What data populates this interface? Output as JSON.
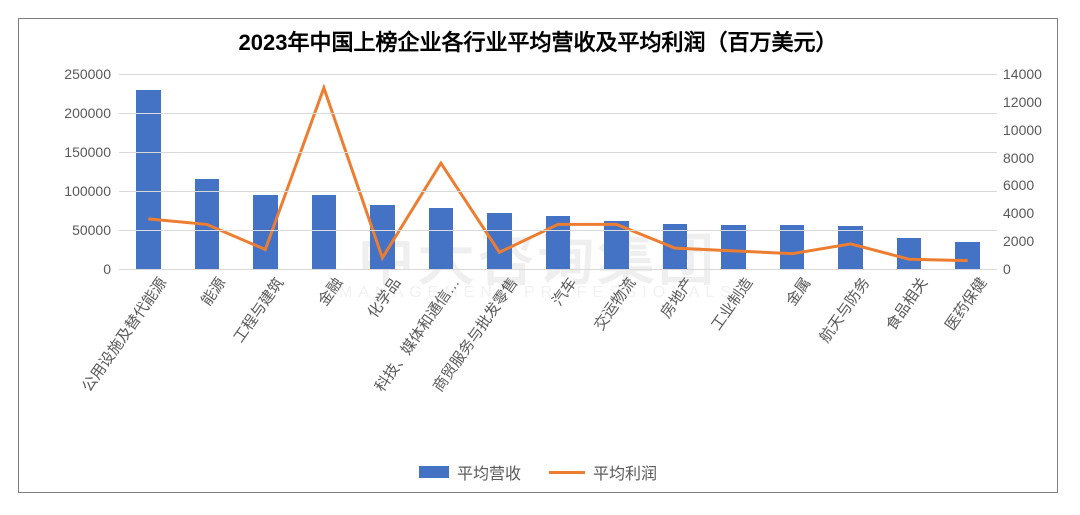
{
  "title": "2023年中国上榜企业各行业平均营收及平均利润（百万美元）",
  "watermark_main": "中大咨询集团",
  "watermark_sub": "MANAGEMENT PROFESSIONALS",
  "chart": {
    "type": "bar+line",
    "background_color": "#ffffff",
    "border_color": "#7f7f7f",
    "grid_color": "#d9d9d9",
    "title_fontsize": 22,
    "title_color": "#000000",
    "label_color": "#595959",
    "label_fontsize": 15,
    "categories": [
      "公用设施及替代能源",
      "能源",
      "工程与建筑",
      "金融",
      "化学品",
      "科技、媒体和通信…",
      "商贸服务与批发零售",
      "汽车",
      "交运物流",
      "房地产",
      "工业制造",
      "金属",
      "航天与防务",
      "食品相关",
      "医药保健"
    ],
    "bar_series": {
      "name": "平均营收",
      "color": "#4472c4",
      "axis": "left",
      "bar_width_ratio": 0.42,
      "values": [
        230000,
        115000,
        95000,
        95000,
        82000,
        78000,
        72000,
        68000,
        62000,
        58000,
        56000,
        56000,
        55000,
        40000,
        35000
      ]
    },
    "line_series": {
      "name": "平均利润",
      "color": "#ed7d31",
      "line_width": 3,
      "axis": "right",
      "values": [
        3600,
        3200,
        1400,
        13000,
        800,
        7600,
        1200,
        3200,
        3200,
        1500,
        1300,
        1100,
        1800,
        700,
        600
      ]
    },
    "y_left": {
      "min": 0,
      "max": 250000,
      "step": 50000
    },
    "y_right": {
      "min": 0,
      "max": 14000,
      "step": 2000
    },
    "x_label_rotation_deg": -55,
    "legend": {
      "position": "bottom",
      "items": [
        "平均营收",
        "平均利润"
      ]
    }
  }
}
